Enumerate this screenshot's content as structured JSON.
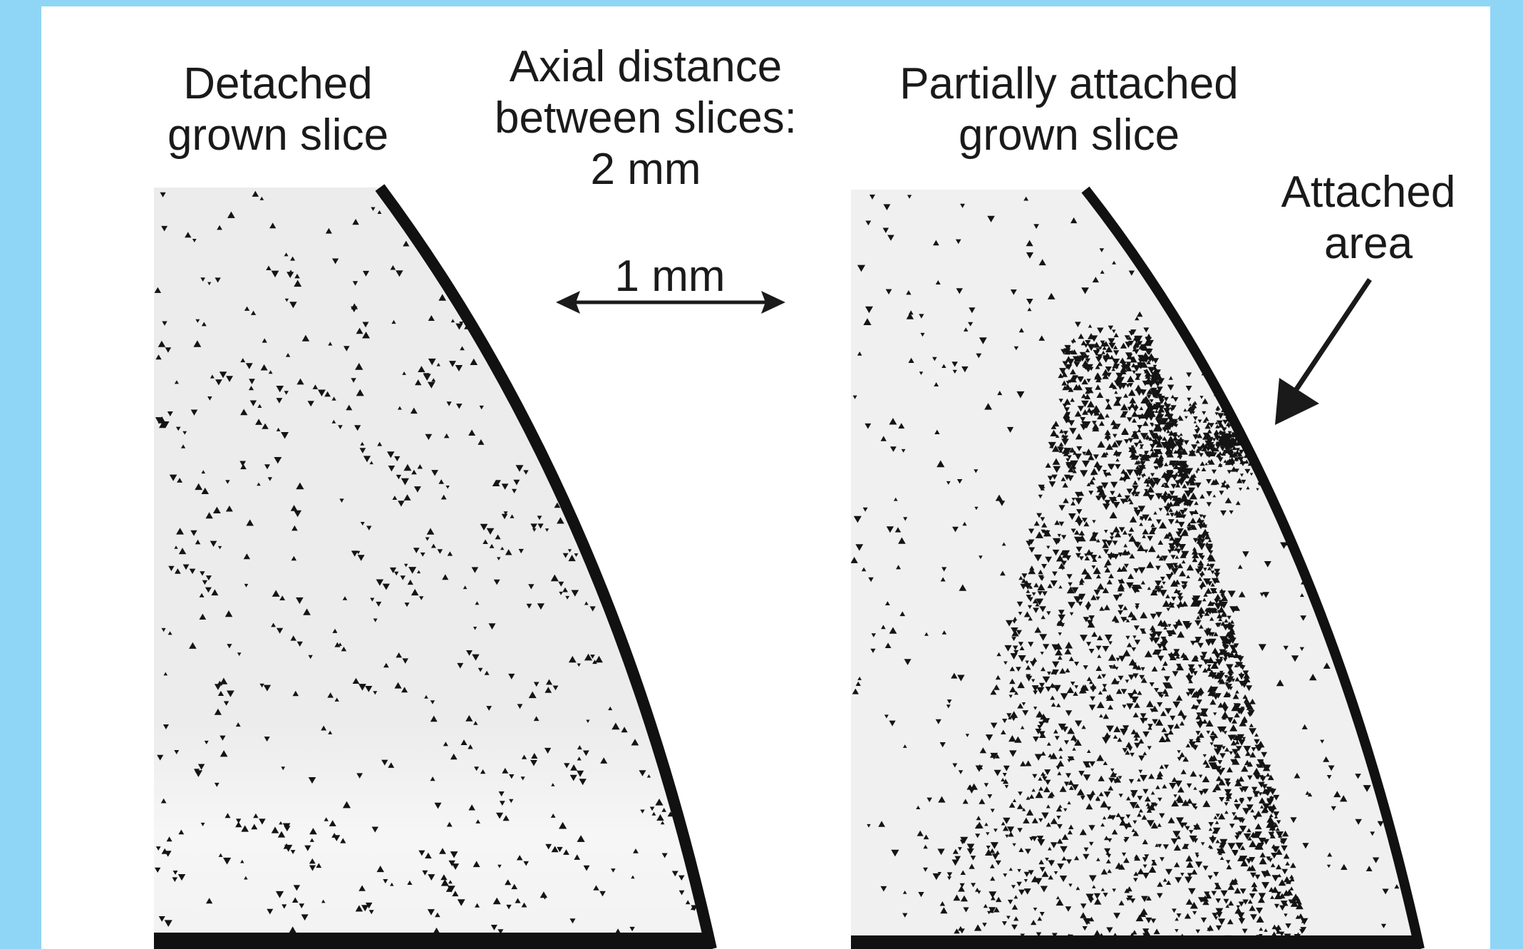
{
  "figure": {
    "left_label": [
      "Detached",
      "grown slice"
    ],
    "middle_label": [
      "Axial distance",
      "between slices:",
      "2 mm"
    ],
    "right_label": [
      "Partially attached",
      "grown slice"
    ],
    "scale_bar_label": "1 mm",
    "attached_label": [
      "Attached",
      "area"
    ]
  },
  "colors": {
    "frame": "#8fd6f6",
    "panel": "#ffffff",
    "slice_fill": "#ececec",
    "edge": "#111111",
    "pits": "#141414"
  }
}
